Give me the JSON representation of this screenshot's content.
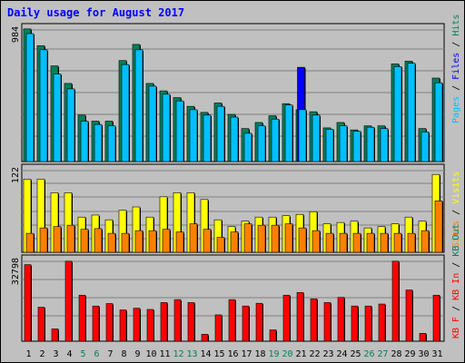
{
  "title": "Daily usage for August 2017",
  "colors": {
    "hits": "#00c0ff",
    "files": "#0000ff",
    "pages": "#00805c",
    "visits": "#ffff00",
    "sites": "#ff8000",
    "kb_in": "#ff0000",
    "kb_out": "#00805c",
    "kb_f": "#ff0000",
    "weekend_day": "#00805c",
    "weekday": "#000000"
  },
  "chart_data": [
    {
      "type": "bar",
      "panel": "top",
      "ymax_label": "984",
      "ylim": [
        0,
        984
      ],
      "grid": true,
      "right_labels": [
        "Pages",
        "Files",
        "Hits"
      ],
      "categories": [
        "1",
        "2",
        "3",
        "4",
        "5",
        "6",
        "7",
        "8",
        "9",
        "10",
        "11",
        "12",
        "13",
        "14",
        "15",
        "16",
        "17",
        "18",
        "19",
        "20",
        "21",
        "22",
        "23",
        "24",
        "25",
        "26",
        "27",
        "28",
        "29",
        "30",
        "31"
      ],
      "weekend_days": [
        "5",
        "6",
        "12",
        "13",
        "19",
        "20",
        "26",
        "27"
      ],
      "series": [
        {
          "name": "Hits",
          "values": [
            950,
            830,
            650,
            540,
            300,
            275,
            265,
            720,
            830,
            560,
            500,
            450,
            385,
            345,
            410,
            330,
            210,
            265,
            315,
            420,
            385,
            345,
            240,
            265,
            225,
            255,
            245,
            705,
            730,
            220,
            585
          ]
        },
        {
          "name": "Files",
          "values": [
            950,
            830,
            650,
            540,
            300,
            275,
            265,
            720,
            830,
            560,
            500,
            450,
            385,
            345,
            410,
            330,
            210,
            265,
            315,
            420,
            700,
            345,
            240,
            265,
            225,
            255,
            245,
            705,
            730,
            220,
            585
          ]
        },
        {
          "name": "Pages",
          "values": [
            985,
            860,
            710,
            580,
            345,
            300,
            300,
            750,
            870,
            580,
            525,
            475,
            410,
            365,
            435,
            350,
            245,
            290,
            340,
            430,
            385,
            370,
            250,
            290,
            235,
            265,
            265,
            725,
            745,
            245,
            620
          ]
        }
      ]
    },
    {
      "type": "bar",
      "panel": "middle",
      "ymax_label": "122",
      "ylim": [
        0,
        122
      ],
      "grid": true,
      "right_labels": [
        "Sites",
        "Visits"
      ],
      "categories": [
        "1",
        "2",
        "3",
        "4",
        "5",
        "6",
        "7",
        "8",
        "9",
        "10",
        "11",
        "12",
        "13",
        "14",
        "15",
        "16",
        "17",
        "18",
        "19",
        "20",
        "21",
        "22",
        "23",
        "24",
        "25",
        "26",
        "27",
        "28",
        "29",
        "30",
        "31"
      ],
      "series": [
        {
          "name": "Visits",
          "values": [
            108,
            108,
            88,
            88,
            52,
            55,
            48,
            62,
            67,
            52,
            82,
            88,
            88,
            78,
            48,
            38,
            46,
            52,
            52,
            54,
            56,
            60,
            42,
            44,
            46,
            36,
            38,
            42,
            52,
            46,
            115
          ]
        },
        {
          "name": "Sites",
          "values": [
            28,
            36,
            38,
            40,
            34,
            35,
            28,
            28,
            32,
            32,
            34,
            30,
            42,
            34,
            22,
            30,
            42,
            40,
            40,
            42,
            36,
            32,
            28,
            28,
            28,
            28,
            28,
            28,
            28,
            32,
            76
          ]
        }
      ]
    },
    {
      "type": "bar",
      "panel": "bottom",
      "ymax_label": "32798",
      "ylim": [
        0,
        32798
      ],
      "grid": true,
      "right_labels": [
        "KB F",
        "KB In",
        "KB Out"
      ],
      "categories": [
        "1",
        "2",
        "3",
        "4",
        "5",
        "6",
        "7",
        "8",
        "9",
        "10",
        "11",
        "12",
        "13",
        "14",
        "15",
        "16",
        "17",
        "18",
        "19",
        "20",
        "21",
        "22",
        "23",
        "24",
        "25",
        "26",
        "27",
        "28",
        "29",
        "30",
        "31"
      ],
      "series": [
        {
          "name": "KB In",
          "values": [
            31100,
            13800,
            5000,
            32500,
            18700,
            14300,
            15300,
            12700,
            13400,
            12900,
            15700,
            16900,
            15700,
            2800,
            10700,
            16900,
            14300,
            15400,
            4600,
            18700,
            19800,
            17200,
            15700,
            17800,
            14300,
            14300,
            15100,
            32500,
            20800,
            3200,
            18700
          ]
        }
      ]
    }
  ]
}
